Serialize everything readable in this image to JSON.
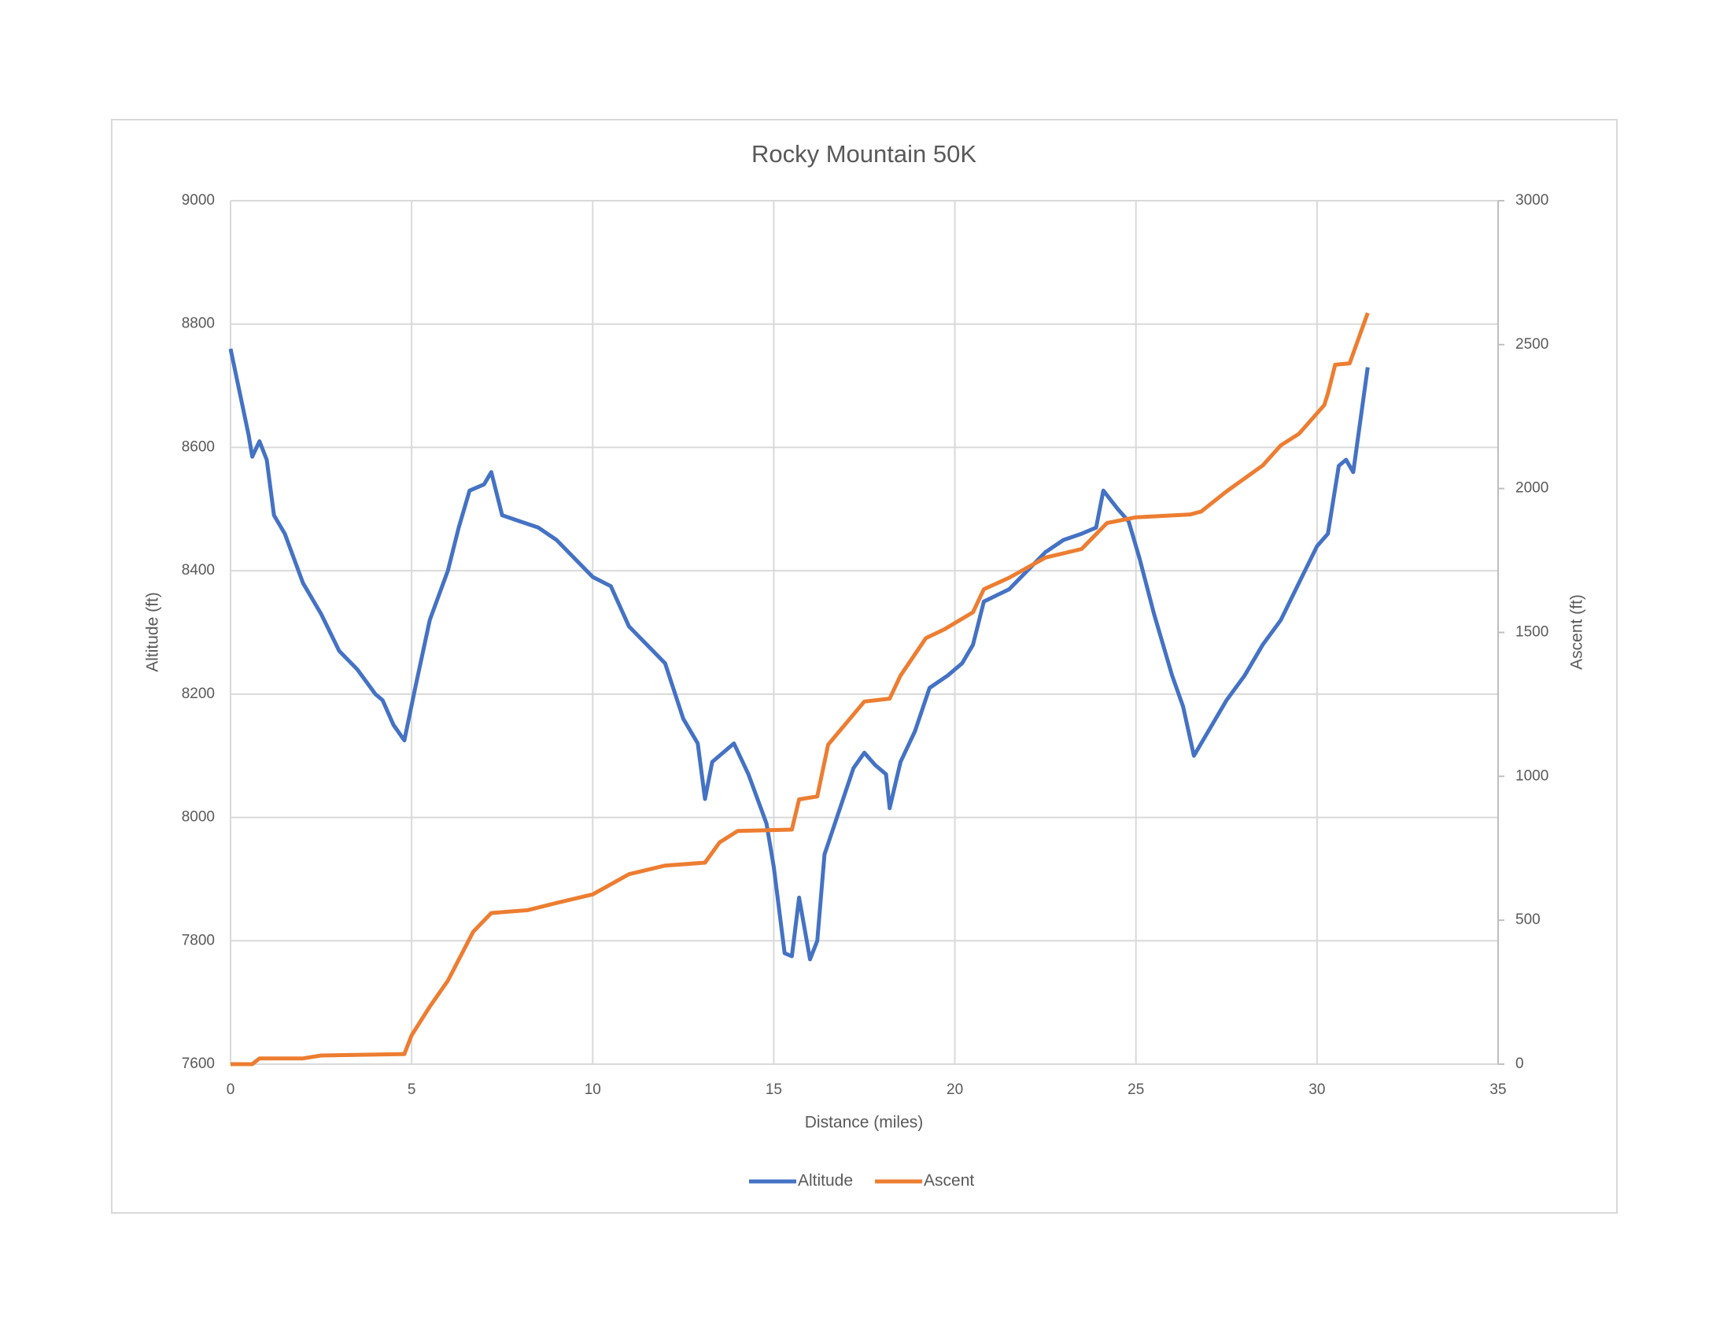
{
  "chart_data": {
    "type": "line",
    "title": "Rocky Mountain 50K",
    "xlabel": "Distance (miles)",
    "ylabel": "Altitude (ft)",
    "y2label": "Ascent (ft)",
    "xlim": [
      0,
      35
    ],
    "xticks": [
      0,
      5,
      10,
      15,
      20,
      25,
      30,
      35
    ],
    "ylim": [
      7600,
      9000
    ],
    "yticks": [
      7600,
      7800,
      8000,
      8200,
      8400,
      8600,
      8800,
      9000
    ],
    "y2lim": [
      0,
      3000
    ],
    "y2ticks": [
      0,
      500,
      1000,
      1500,
      2000,
      2500,
      3000
    ],
    "grid": true,
    "legend": "bottom",
    "series": [
      {
        "name": "Altitude",
        "color": "#4472c4",
        "x": [
          0,
          0.5,
          0.6,
          0.8,
          1,
          1.2,
          1.5,
          2,
          2.5,
          3,
          3.5,
          4,
          4.2,
          4.5,
          4.8,
          5.1,
          5.5,
          6,
          6.3,
          6.6,
          7,
          7.2,
          7.5,
          8,
          8.5,
          9,
          9.5,
          10,
          10.5,
          11,
          11.5,
          12,
          12.5,
          12.9,
          13.1,
          13.3,
          13.9,
          14.3,
          14.8,
          15,
          15.3,
          15.5,
          15.7,
          16,
          16.2,
          16.4,
          16.8,
          17.2,
          17.5,
          17.8,
          18.1,
          18.2,
          18.5,
          18.9,
          19.3,
          19.8,
          20.2,
          20.5,
          20.8,
          21.5,
          22,
          22.5,
          23,
          23.5,
          23.9,
          24.1,
          24.5,
          24.8,
          25.1,
          25.5,
          26,
          26.3,
          26.6,
          27,
          27.5,
          28,
          28.5,
          29,
          29.5,
          30,
          30.3,
          30.6,
          30.8,
          31,
          31.4
        ],
        "values": [
          8760,
          8620,
          8585,
          8610,
          8580,
          8490,
          8460,
          8380,
          8330,
          8270,
          8240,
          8200,
          8190,
          8150,
          8125,
          8210,
          8320,
          8400,
          8470,
          8530,
          8540,
          8560,
          8490,
          8480,
          8470,
          8450,
          8420,
          8390,
          8375,
          8310,
          8280,
          8250,
          8160,
          8120,
          8030,
          8090,
          8120,
          8070,
          7990,
          7920,
          7780,
          7775,
          7870,
          7770,
          7800,
          7940,
          8010,
          8080,
          8105,
          8085,
          8070,
          8015,
          8090,
          8140,
          8210,
          8230,
          8250,
          8280,
          8350,
          8370,
          8400,
          8430,
          8450,
          8460,
          8470,
          8530,
          8500,
          8480,
          8420,
          8330,
          8230,
          8180,
          8100,
          8140,
          8190,
          8230,
          8280,
          8320,
          8380,
          8440,
          8460,
          8570,
          8580,
          8560,
          8730
        ]
      },
      {
        "name": "Ascent",
        "color": "#ed7d31",
        "axis": "y2",
        "x": [
          0,
          0.6,
          0.8,
          2,
          2.5,
          4.8,
          5,
          5.5,
          6,
          6.7,
          7.2,
          8.2,
          9,
          10,
          11,
          12,
          13.1,
          13.5,
          14,
          15.5,
          15.7,
          16.2,
          16.5,
          17.5,
          18.2,
          18.5,
          19.2,
          19.7,
          20.5,
          20.8,
          21.5,
          22.5,
          23.5,
          24.2,
          25,
          26.5,
          26.8,
          27.5,
          28.5,
          29,
          29.5,
          30.2,
          30.3,
          30.5,
          30.9,
          31.4
        ],
        "values": [
          0,
          0,
          20,
          20,
          30,
          35,
          100,
          200,
          290,
          460,
          525,
          535,
          560,
          590,
          660,
          690,
          700,
          770,
          810,
          815,
          920,
          930,
          1110,
          1260,
          1270,
          1350,
          1480,
          1510,
          1570,
          1650,
          1690,
          1760,
          1790,
          1880,
          1900,
          1910,
          1920,
          1990,
          2080,
          2150,
          2190,
          2290,
          2330,
          2430,
          2435,
          2610
        ]
      }
    ]
  }
}
